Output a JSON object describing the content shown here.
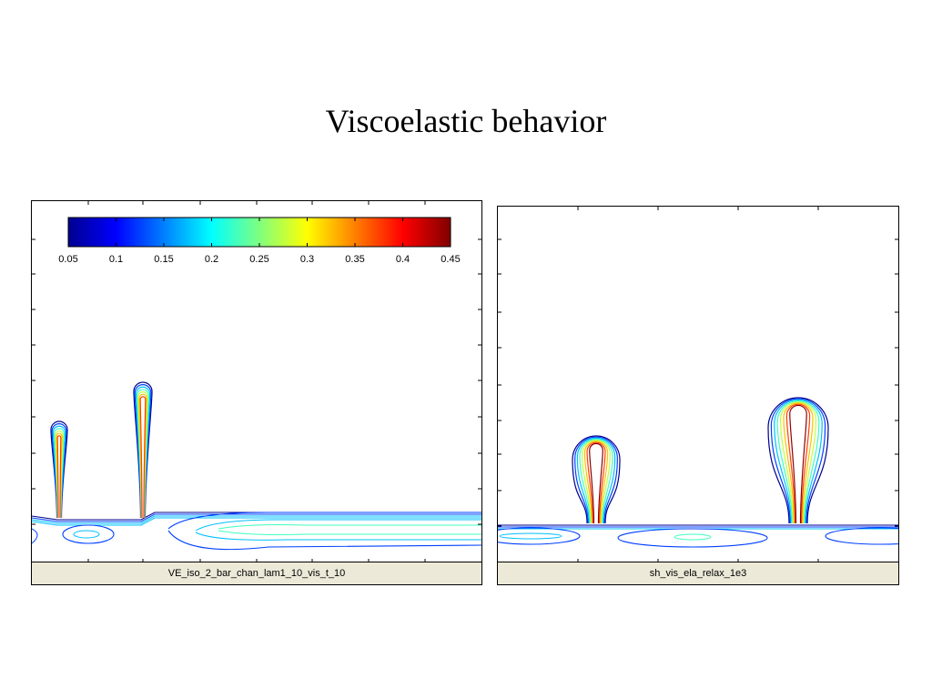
{
  "slide": {
    "title": "Viscoelastic behavior"
  },
  "colors": [
    "#00008f",
    "#0040ff",
    "#00c0ff",
    "#40ffc0",
    "#c0ff40",
    "#ffc000",
    "#ff4000",
    "#8f0000"
  ],
  "chart_data": [
    {
      "type": "contour",
      "caption": "VE_iso_2_bar_chan_lam1_10_vis_t_10",
      "colorbar": {
        "ticks": [
          "0.05",
          "0.1",
          "0.15",
          "0.2",
          "0.25",
          "0.3",
          "0.35",
          "0.4",
          "0.45"
        ],
        "range": [
          0.05,
          0.45
        ],
        "colormap": "jet",
        "placement": "top"
      },
      "levels": [
        0.05,
        0.1,
        0.15,
        0.2,
        0.25,
        0.3,
        0.35,
        0.4,
        0.45
      ],
      "grid": false
    },
    {
      "type": "contour",
      "caption": "sh_vis_ela_relax_1e3",
      "colormap": "jet",
      "grid": false
    }
  ]
}
